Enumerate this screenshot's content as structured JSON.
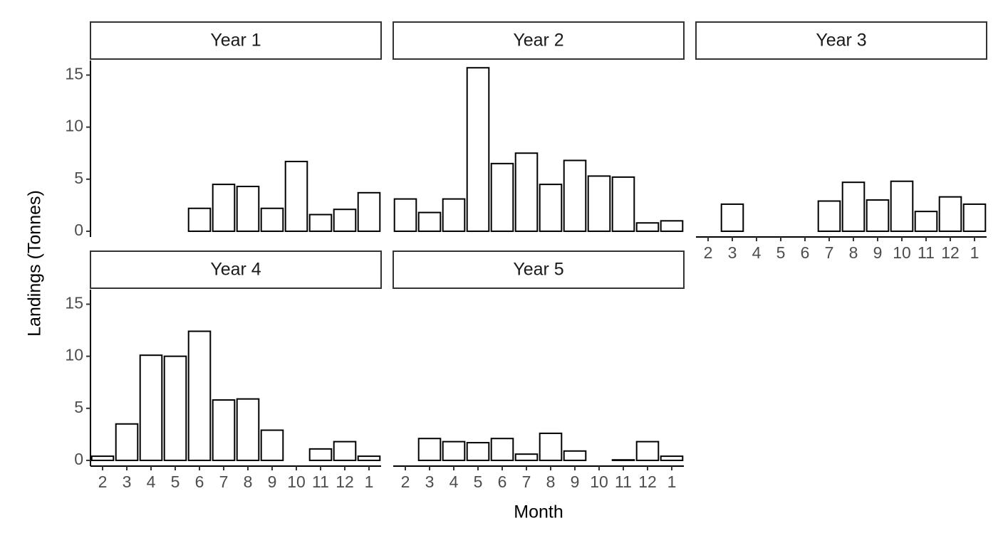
{
  "chart_data": {
    "type": "bar",
    "xlabel": "Month",
    "ylabel": "Landings (Tonnes)",
    "categories": [
      "2",
      "3",
      "4",
      "5",
      "6",
      "7",
      "8",
      "9",
      "10",
      "11",
      "12",
      "1"
    ],
    "ylim": [
      -0.55,
      16.4
    ],
    "yticks": [
      0,
      5,
      10,
      15
    ],
    "color": "#ffffff",
    "edgecolor": "#000000",
    "facets": [
      {
        "title": "Year 1",
        "values": [
          null,
          null,
          null,
          null,
          2.2,
          4.5,
          4.3,
          2.2,
          6.7,
          1.6,
          2.1,
          3.7
        ]
      },
      {
        "title": "Year 2",
        "values": [
          3.1,
          1.8,
          3.1,
          15.7,
          6.5,
          7.5,
          4.5,
          6.8,
          5.3,
          5.2,
          0.8,
          1.0
        ]
      },
      {
        "title": "Year 3",
        "values": [
          null,
          2.6,
          null,
          null,
          null,
          2.9,
          4.7,
          3.0,
          4.8,
          1.9,
          3.3,
          2.6
        ]
      },
      {
        "title": "Year 4",
        "values": [
          0.4,
          3.5,
          10.1,
          10.0,
          12.4,
          5.8,
          5.9,
          2.9,
          null,
          1.1,
          1.8,
          0.4
        ]
      },
      {
        "title": "Year 5",
        "values": [
          null,
          2.1,
          1.8,
          1.7,
          2.1,
          0.6,
          2.6,
          0.9,
          null,
          0.05,
          1.8,
          0.4
        ]
      }
    ]
  }
}
